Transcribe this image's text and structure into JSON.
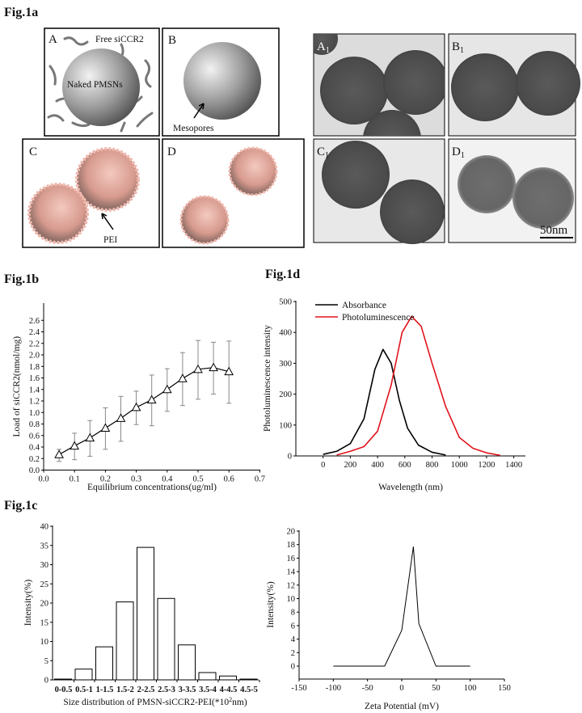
{
  "titles": {
    "a": "Fig.1a",
    "b": "Fig.1b",
    "c": "Fig.1c",
    "d": "Fig.1d"
  },
  "schematic": {
    "A": {
      "label": "A",
      "notes": [
        "Free siCCR2",
        "Naked PMSNs"
      ]
    },
    "B": {
      "label": "B",
      "notes": [
        "Mesopores"
      ]
    },
    "C": {
      "label": "C",
      "notes": [
        "PEI"
      ]
    },
    "D": {
      "label": "D",
      "notes": []
    }
  },
  "tem": {
    "panels": [
      {
        "label": "A",
        "sub": "1"
      },
      {
        "label": "B",
        "sub": "1"
      },
      {
        "label": "C",
        "sub": "1"
      },
      {
        "label": "D",
        "sub": "1"
      }
    ],
    "scale_bar": "50nm"
  },
  "colors": {
    "absorbance": "#000000",
    "photoluminescence": "#e0141c",
    "error_bar": "#888888"
  },
  "chart_data": [
    {
      "id": "fig1b",
      "type": "line",
      "marker": "open-triangle",
      "xlabel": "Equilibrium concentrations(ug/ml)",
      "ylabel": "Load of siCCR2(nmol/mg)",
      "xlim": [
        0.0,
        0.7
      ],
      "ylim": [
        0.0,
        2.6
      ],
      "xticks": [
        "0.0",
        "0.1",
        "0.2",
        "0.3",
        "0.4",
        "0.5",
        "0.6",
        "0.7"
      ],
      "yticks": [
        "0.0",
        "0.2",
        "0.4",
        "0.6",
        "0.8",
        "1.0",
        "1.2",
        "1.4",
        "1.6",
        "1.8",
        "2.0",
        "2.2",
        "2.4",
        "2.6"
      ],
      "x": [
        0.05,
        0.1,
        0.15,
        0.2,
        0.25,
        0.3,
        0.35,
        0.4,
        0.45,
        0.5,
        0.55,
        0.6
      ],
      "y": [
        0.27,
        0.42,
        0.56,
        0.73,
        0.9,
        1.09,
        1.22,
        1.4,
        1.59,
        1.75,
        1.78,
        1.71
      ],
      "err_high": [
        0.36,
        0.64,
        0.86,
        1.08,
        1.28,
        1.37,
        1.65,
        1.76,
        2.04,
        2.25,
        2.22,
        2.24
      ],
      "err_low": [
        0.15,
        0.18,
        0.24,
        0.36,
        0.5,
        0.79,
        0.77,
        1.02,
        1.12,
        1.23,
        1.32,
        1.16
      ]
    },
    {
      "id": "fig1d",
      "type": "line",
      "xlabel": "Wavelength (nm)",
      "ylabel": "Photoluminescence intensity",
      "xlim": [
        -200,
        1400
      ],
      "ylim": [
        0,
        500
      ],
      "xticks": [
        "0",
        "200",
        "400",
        "600",
        "800",
        "1000",
        "1200",
        "1400"
      ],
      "yticks": [
        "0",
        "100",
        "200",
        "300",
        "400",
        "500"
      ],
      "legend": "top-left",
      "series": [
        {
          "name": "Absorbance",
          "x": [
            0,
            100,
            200,
            300,
            380,
            440,
            500,
            560,
            620,
            700,
            800,
            900
          ],
          "y": [
            5,
            15,
            40,
            120,
            280,
            345,
            300,
            180,
            90,
            35,
            12,
            3
          ]
        },
        {
          "name": "Photoluminescence",
          "x": [
            100,
            200,
            300,
            400,
            500,
            580,
            650,
            720,
            800,
            900,
            1000,
            1100,
            1200,
            1300
          ],
          "y": [
            3,
            15,
            30,
            80,
            230,
            400,
            452,
            420,
            300,
            160,
            60,
            25,
            10,
            2
          ]
        }
      ]
    },
    {
      "id": "fig1c-size",
      "type": "bar",
      "xlabel": "Size distribution of PMSN-siCCR2-PEI(*10",
      "xlabel_sup": "2",
      "xlabel_end": "nm)",
      "ylabel": "Intensity(%)",
      "ylim": [
        0,
        40
      ],
      "yticks": [
        "0",
        "5",
        "10",
        "15",
        "20",
        "25",
        "30",
        "35",
        "40"
      ],
      "categories": [
        "0-0.5",
        "0.5-1",
        "1-1.5",
        "1.5-2",
        "2-2.5",
        "2.5-3",
        "3-3.5",
        "3.5-4",
        "4-4.5",
        "4.5-5"
      ],
      "values": [
        0.2,
        2.8,
        8.6,
        20.3,
        34.5,
        21.2,
        9.1,
        1.9,
        1.0,
        0.2
      ]
    },
    {
      "id": "fig1c-zeta",
      "type": "line",
      "xlabel": "Zeta Potential (mV)",
      "ylabel": "Intensity(%)",
      "xlim": [
        -150,
        150
      ],
      "ylim": [
        -2,
        20
      ],
      "xticks": [
        "-150",
        "-100",
        "-50",
        "0",
        "50",
        "100",
        "150"
      ],
      "yticks": [
        "0",
        "2",
        "4",
        "6",
        "8",
        "10",
        "12",
        "14",
        "16",
        "18",
        "20"
      ],
      "x": [
        -100,
        -25,
        0,
        17,
        25,
        50,
        100
      ],
      "y": [
        0,
        0,
        5.3,
        17.7,
        6.3,
        0,
        0
      ]
    }
  ]
}
